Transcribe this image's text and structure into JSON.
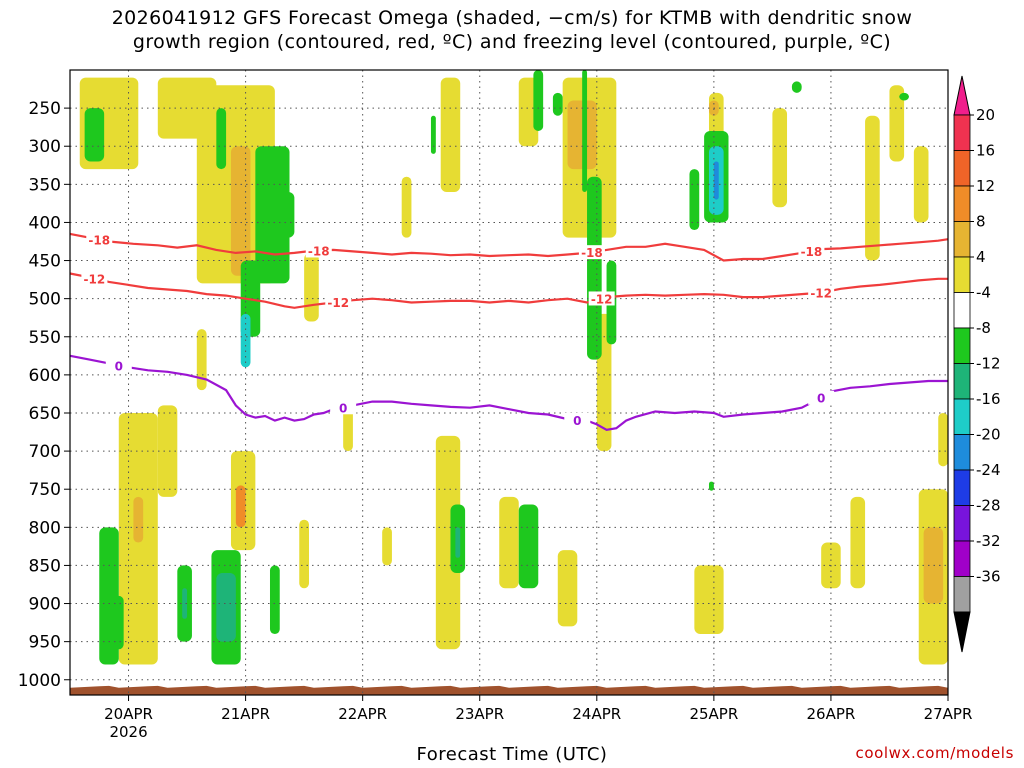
{
  "chart_data": {
    "type": "heatmap",
    "title_lines": [
      "2026041912 GFS Forecast Omega (shaded, −cm/s) for KTMB with dendritic snow",
      "growth region (contoured, red, ºC) and freezing level (contoured, purple, ºC)"
    ],
    "xlabel": "Forecast Time (UTC)",
    "credit": "coolwx.com/models",
    "x_ticks": [
      {
        "t": 24,
        "label": "20APR",
        "sub": "2026"
      },
      {
        "t": 48,
        "label": "21APR",
        "sub": ""
      },
      {
        "t": 72,
        "label": "22APR",
        "sub": ""
      },
      {
        "t": 96,
        "label": "23APR",
        "sub": ""
      },
      {
        "t": 120,
        "label": "24APR",
        "sub": ""
      },
      {
        "t": 144,
        "label": "25APR",
        "sub": ""
      },
      {
        "t": 168,
        "label": "26APR",
        "sub": ""
      },
      {
        "t": 192,
        "label": "27APR",
        "sub": ""
      }
    ],
    "x_range_hours": [
      12,
      192
    ],
    "y_ticks": [
      250,
      300,
      350,
      400,
      450,
      500,
      550,
      600,
      650,
      700,
      750,
      800,
      850,
      900,
      950,
      1000
    ],
    "y_range_hpa": [
      200,
      1020
    ],
    "colorbar": {
      "labels": [
        "20",
        "16",
        "12",
        "8",
        "4",
        "-4",
        "-8",
        "-12",
        "-16",
        "-20",
        "-24",
        "-28",
        "-32",
        "-36"
      ],
      "colors": [
        "#f03250",
        "#f06428",
        "#f08c28",
        "#e6b432",
        "#e6dc32",
        "#ffffff",
        "#1ec81e",
        "#1eb478",
        "#1ecdc8",
        "#1e8cdc",
        "#1e3ce6",
        "#7814dc",
        "#a000c8",
        "#a0a0a0"
      ],
      "top_arrow_color": "#f01e8c",
      "bottom_arrow_color": "#000000"
    },
    "ground_color": "#a0522d",
    "contours": [
      {
        "label": "-18",
        "color": "#f03c3c",
        "label_hours": [
          18,
          63,
          119,
          164
        ],
        "points": [
          [
            12,
            415
          ],
          [
            16,
            420
          ],
          [
            20,
            425
          ],
          [
            25,
            428
          ],
          [
            30,
            430
          ],
          [
            34,
            433
          ],
          [
            38,
            430
          ],
          [
            42,
            436
          ],
          [
            46,
            440
          ],
          [
            50,
            438
          ],
          [
            54,
            442
          ],
          [
            58,
            440
          ],
          [
            62,
            437
          ],
          [
            66,
            436
          ],
          [
            70,
            438
          ],
          [
            74,
            440
          ],
          [
            78,
            442
          ],
          [
            82,
            440
          ],
          [
            86,
            441
          ],
          [
            90,
            443
          ],
          [
            94,
            442
          ],
          [
            98,
            444
          ],
          [
            102,
            443
          ],
          [
            106,
            442
          ],
          [
            110,
            444
          ],
          [
            114,
            442
          ],
          [
            118,
            440
          ],
          [
            122,
            436
          ],
          [
            126,
            432
          ],
          [
            130,
            432
          ],
          [
            134,
            428
          ],
          [
            138,
            432
          ],
          [
            142,
            436
          ],
          [
            146,
            450
          ],
          [
            150,
            448
          ],
          [
            154,
            448
          ],
          [
            158,
            444
          ],
          [
            162,
            440
          ],
          [
            166,
            435
          ],
          [
            170,
            434
          ],
          [
            174,
            432
          ],
          [
            178,
            430
          ],
          [
            182,
            428
          ],
          [
            186,
            426
          ],
          [
            190,
            424
          ],
          [
            192,
            422
          ]
        ]
      },
      {
        "label": "-12",
        "color": "#f03c3c",
        "label_hours": [
          17,
          67,
          121,
          166
        ],
        "points": [
          [
            12,
            467
          ],
          [
            16,
            472
          ],
          [
            20,
            478
          ],
          [
            24,
            482
          ],
          [
            28,
            486
          ],
          [
            32,
            488
          ],
          [
            36,
            490
          ],
          [
            40,
            494
          ],
          [
            44,
            496
          ],
          [
            48,
            500
          ],
          [
            52,
            504
          ],
          [
            56,
            510
          ],
          [
            58,
            512
          ],
          [
            62,
            508
          ],
          [
            66,
            505
          ],
          [
            70,
            502
          ],
          [
            74,
            500
          ],
          [
            78,
            502
          ],
          [
            82,
            505
          ],
          [
            86,
            504
          ],
          [
            90,
            503
          ],
          [
            94,
            503
          ],
          [
            98,
            505
          ],
          [
            102,
            503
          ],
          [
            106,
            505
          ],
          [
            110,
            502
          ],
          [
            114,
            500
          ],
          [
            118,
            505
          ],
          [
            122,
            498
          ],
          [
            126,
            496
          ],
          [
            130,
            495
          ],
          [
            134,
            496
          ],
          [
            138,
            495
          ],
          [
            142,
            494
          ],
          [
            146,
            495
          ],
          [
            150,
            498
          ],
          [
            154,
            498
          ],
          [
            158,
            496
          ],
          [
            162,
            494
          ],
          [
            166,
            492
          ],
          [
            170,
            487
          ],
          [
            174,
            484
          ],
          [
            178,
            482
          ],
          [
            182,
            479
          ],
          [
            186,
            476
          ],
          [
            190,
            474
          ],
          [
            192,
            474
          ]
        ]
      },
      {
        "label": "0",
        "color": "#9b14d2",
        "label_hours": [
          22,
          68,
          116,
          166
        ],
        "points": [
          [
            12,
            575
          ],
          [
            16,
            580
          ],
          [
            20,
            585
          ],
          [
            24,
            590
          ],
          [
            28,
            594
          ],
          [
            32,
            596
          ],
          [
            36,
            600
          ],
          [
            40,
            606
          ],
          [
            44,
            620
          ],
          [
            46,
            640
          ],
          [
            48,
            652
          ],
          [
            50,
            656
          ],
          [
            52,
            654
          ],
          [
            54,
            660
          ],
          [
            56,
            656
          ],
          [
            58,
            660
          ],
          [
            60,
            658
          ],
          [
            62,
            652
          ],
          [
            64,
            650
          ],
          [
            66,
            645
          ],
          [
            70,
            640
          ],
          [
            74,
            635
          ],
          [
            78,
            635
          ],
          [
            82,
            638
          ],
          [
            86,
            640
          ],
          [
            90,
            642
          ],
          [
            94,
            643
          ],
          [
            98,
            640
          ],
          [
            102,
            645
          ],
          [
            106,
            650
          ],
          [
            110,
            652
          ],
          [
            114,
            658
          ],
          [
            118,
            660
          ],
          [
            120,
            665
          ],
          [
            122,
            672
          ],
          [
            124,
            670
          ],
          [
            126,
            660
          ],
          [
            128,
            655
          ],
          [
            132,
            648
          ],
          [
            136,
            650
          ],
          [
            140,
            648
          ],
          [
            144,
            650
          ],
          [
            146,
            655
          ],
          [
            150,
            652
          ],
          [
            154,
            650
          ],
          [
            158,
            648
          ],
          [
            162,
            643
          ],
          [
            166,
            630
          ],
          [
            168,
            622
          ],
          [
            172,
            617
          ],
          [
            176,
            615
          ],
          [
            180,
            612
          ],
          [
            184,
            610
          ],
          [
            188,
            608
          ],
          [
            192,
            608
          ]
        ]
      }
    ],
    "shading": [
      {
        "v": 6,
        "t0": 14,
        "t1": 26,
        "p0": 210,
        "p1": 330
      },
      {
        "v": 6,
        "t0": 22,
        "t1": 30,
        "p0": 650,
        "p1": 980
      },
      {
        "v": 10,
        "t0": 25,
        "t1": 27,
        "p0": 760,
        "p1": 820
      },
      {
        "v": 6,
        "t0": 30,
        "t1": 42,
        "p0": 210,
        "p1": 290
      },
      {
        "v": 6,
        "t0": 38,
        "t1": 54,
        "p0": 220,
        "p1": 480
      },
      {
        "v": 10,
        "t0": 45,
        "t1": 49,
        "p0": 300,
        "p1": 470
      },
      {
        "v": 6,
        "t0": 45,
        "t1": 50,
        "p0": 700,
        "p1": 830
      },
      {
        "v": 14,
        "t0": 46,
        "t1": 48,
        "p0": 745,
        "p1": 800
      },
      {
        "v": 6,
        "t0": 88,
        "t1": 92,
        "p0": 210,
        "p1": 360
      },
      {
        "v": 6,
        "t0": 104,
        "t1": 108,
        "p0": 210,
        "p1": 300
      },
      {
        "v": 6,
        "t0": 113,
        "t1": 124,
        "p0": 210,
        "p1": 420
      },
      {
        "v": 10,
        "t0": 114,
        "t1": 120,
        "p0": 240,
        "p1": 330
      },
      {
        "v": 6,
        "t0": 120,
        "t1": 123,
        "p0": 520,
        "p1": 700
      },
      {
        "v": 6,
        "t0": 87,
        "t1": 92,
        "p0": 680,
        "p1": 960
      },
      {
        "v": 6,
        "t0": 100,
        "t1": 104,
        "p0": 760,
        "p1": 880
      },
      {
        "v": 6,
        "t0": 112,
        "t1": 116,
        "p0": 830,
        "p1": 930
      },
      {
        "v": 6,
        "t0": 143,
        "t1": 146,
        "p0": 230,
        "p1": 340
      },
      {
        "v": 10,
        "t0": 143,
        "t1": 145,
        "p0": 240,
        "p1": 260
      },
      {
        "v": 6,
        "t0": 140,
        "t1": 146,
        "p0": 850,
        "p1": 940
      },
      {
        "v": 6,
        "t0": 156,
        "t1": 159,
        "p0": 250,
        "p1": 380
      },
      {
        "v": 6,
        "t0": 166,
        "t1": 170,
        "p0": 820,
        "p1": 880
      },
      {
        "v": 6,
        "t0": 172,
        "t1": 175,
        "p0": 760,
        "p1": 880
      },
      {
        "v": 6,
        "t0": 175,
        "t1": 178,
        "p0": 260,
        "p1": 450
      },
      {
        "v": 6,
        "t0": 180,
        "t1": 183,
        "p0": 220,
        "p1": 320
      },
      {
        "v": 6,
        "t0": 185,
        "t1": 188,
        "p0": 300,
        "p1": 400
      },
      {
        "v": 6,
        "t0": 186,
        "t1": 192,
        "p0": 750,
        "p1": 980
      },
      {
        "v": 10,
        "t0": 187,
        "t1": 191,
        "p0": 800,
        "p1": 900
      },
      {
        "v": 6,
        "t0": 190,
        "t1": 192,
        "p0": 650,
        "p1": 720
      },
      {
        "v": 6,
        "t0": 30,
        "t1": 34,
        "p0": 640,
        "p1": 760
      },
      {
        "v": 6,
        "t0": 38,
        "t1": 40,
        "p0": 540,
        "p1": 620
      },
      {
        "v": 6,
        "t0": 59,
        "t1": 61,
        "p0": 790,
        "p1": 880
      },
      {
        "v": 6,
        "t0": 68,
        "t1": 70,
        "p0": 640,
        "p1": 700
      },
      {
        "v": 6,
        "t0": 80,
        "t1": 82,
        "p0": 340,
        "p1": 420
      },
      {
        "v": 6,
        "t0": 76,
        "t1": 78,
        "p0": 800,
        "p1": 850
      },
      {
        "v": 6,
        "t0": 60,
        "t1": 63,
        "p0": 440,
        "p1": 530
      },
      {
        "v": -6,
        "t0": 15,
        "t1": 19,
        "p0": 250,
        "p1": 320
      },
      {
        "v": -6,
        "t0": 18,
        "t1": 22,
        "p0": 800,
        "p1": 980
      },
      {
        "v": -6,
        "t0": 21,
        "t1": 23,
        "p0": 890,
        "p1": 960
      },
      {
        "v": -6,
        "t0": 34,
        "t1": 37,
        "p0": 850,
        "p1": 950
      },
      {
        "v": -10,
        "t0": 35,
        "t1": 36,
        "p0": 880,
        "p1": 920
      },
      {
        "v": -6,
        "t0": 42,
        "t1": 44,
        "p0": 250,
        "p1": 330
      },
      {
        "v": -6,
        "t0": 47,
        "t1": 51,
        "p0": 450,
        "p1": 550
      },
      {
        "v": -14,
        "t0": 47,
        "t1": 49,
        "p0": 520,
        "p1": 590
      },
      {
        "v": -6,
        "t0": 50,
        "t1": 57,
        "p0": 300,
        "p1": 480
      },
      {
        "v": -6,
        "t0": 55,
        "t1": 58,
        "p0": 360,
        "p1": 420
      },
      {
        "v": -6,
        "t0": 41,
        "t1": 47,
        "p0": 830,
        "p1": 980
      },
      {
        "v": -10,
        "t0": 42,
        "t1": 46,
        "p0": 860,
        "p1": 950
      },
      {
        "v": -6,
        "t0": 53,
        "t1": 55,
        "p0": 850,
        "p1": 940
      },
      {
        "v": -6,
        "t0": 90,
        "t1": 93,
        "p0": 770,
        "p1": 860
      },
      {
        "v": -10,
        "t0": 91,
        "t1": 92,
        "p0": 800,
        "p1": 840
      },
      {
        "v": -6,
        "t0": 104,
        "t1": 108,
        "p0": 770,
        "p1": 880
      },
      {
        "v": -6,
        "t0": 107,
        "t1": 109,
        "p0": 200,
        "p1": 280
      },
      {
        "v": -6,
        "t0": 111,
        "t1": 113,
        "p0": 230,
        "p1": 260
      },
      {
        "v": -6,
        "t0": 118,
        "t1": 121,
        "p0": 340,
        "p1": 580
      },
      {
        "v": -6,
        "t0": 122,
        "t1": 124,
        "p0": 450,
        "p1": 560
      },
      {
        "v": -6,
        "t0": 117,
        "t1": 118,
        "p0": 200,
        "p1": 360
      },
      {
        "v": -6,
        "t0": 86,
        "t1": 87,
        "p0": 260,
        "p1": 310
      },
      {
        "v": -6,
        "t0": 139,
        "t1": 141,
        "p0": 330,
        "p1": 410
      },
      {
        "v": -6,
        "t0": 142,
        "t1": 147,
        "p0": 280,
        "p1": 400
      },
      {
        "v": -14,
        "t0": 143,
        "t1": 146,
        "p0": 300,
        "p1": 390
      },
      {
        "v": -18,
        "t0": 144,
        "t1": 145,
        "p0": 320,
        "p1": 370
      },
      {
        "v": -6,
        "t0": 160,
        "t1": 162,
        "p0": 215,
        "p1": 230
      },
      {
        "v": -6,
        "t0": 182,
        "t1": 184,
        "p0": 230,
        "p1": 240
      },
      {
        "v": -6,
        "t0": 143,
        "t1": 144,
        "p0": 740,
        "p1": 752
      }
    ]
  }
}
